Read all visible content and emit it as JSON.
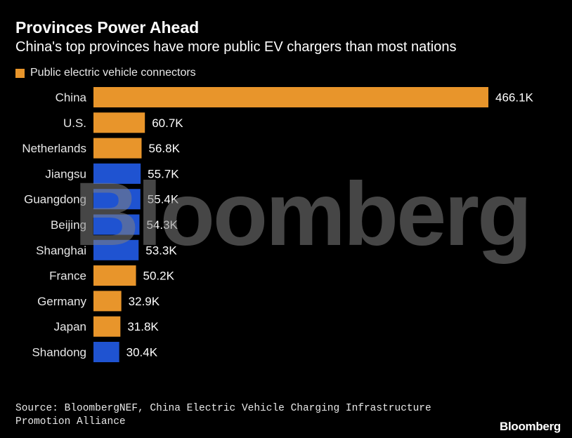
{
  "header": {
    "title": "Provinces Power Ahead",
    "subtitle": "China's top provinces have more public EV chargers than most nations"
  },
  "colors": {
    "country": "#e8952b",
    "province": "#1f53d1",
    "background": "#000000"
  },
  "chart_data": {
    "type": "bar",
    "orientation": "horizontal",
    "title": "Provinces Power Ahead",
    "subtitle": "China's top provinces have more public EV chargers than most nations",
    "legend": [
      {
        "label": "Public electric vehicle connectors",
        "color": "#e8952b"
      }
    ],
    "legend_placement": "top-left",
    "categories": [
      "China",
      "U.S.",
      "Netherlands",
      "Jiangsu",
      "Guangdong",
      "Beijing",
      "Shanghai",
      "France",
      "Germany",
      "Japan",
      "Shandong"
    ],
    "values": [
      466.1,
      60.7,
      56.8,
      55.7,
      55.4,
      54.3,
      53.3,
      50.2,
      32.9,
      31.8,
      30.4
    ],
    "value_labels": [
      "466.1K",
      "60.7K",
      "56.8K",
      "55.7K",
      "55.4K",
      "54.3K",
      "53.3K",
      "50.2K",
      "32.9K",
      "31.8K",
      "30.4K"
    ],
    "bar_kinds": [
      "country",
      "country",
      "country",
      "province",
      "province",
      "province",
      "province",
      "country",
      "country",
      "country",
      "province"
    ],
    "unit": "K",
    "xlim": [
      0,
      466.1
    ],
    "grid": false
  },
  "watermark": "Bloomberg",
  "footer": {
    "source": "Source: BloombergNEF, China Electric Vehicle Charging Infrastructure Promotion Alliance",
    "brand": "Bloomberg"
  }
}
